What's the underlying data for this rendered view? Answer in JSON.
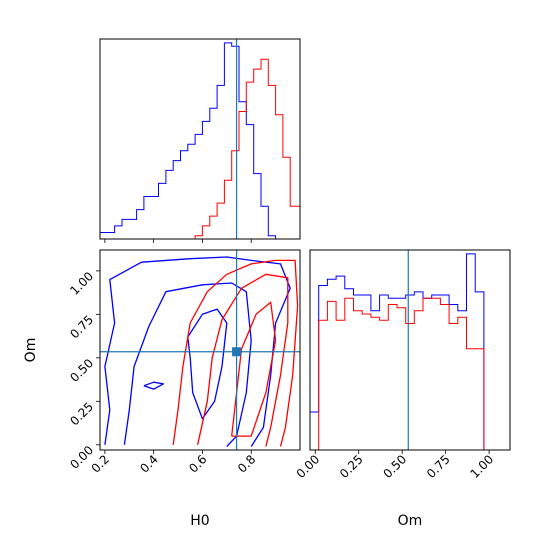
{
  "chart_data": {
    "type": "corner",
    "parameters": [
      "H0",
      "Om"
    ],
    "truths": {
      "H0": 0.74,
      "Om": 0.535
    },
    "colors": {
      "red": "#ff0000",
      "blue": "#0000ff",
      "truth": "#1f77b4"
    },
    "ranges": {
      "H0": [
        0.18,
        1.0
      ],
      "Om": [
        -0.03,
        1.12
      ]
    },
    "ticks": {
      "H0": [
        "0.2",
        "0.4",
        "0.6",
        "0.8"
      ],
      "Om": [
        "0.00",
        "0.25",
        "0.50",
        "0.75",
        "1.00"
      ]
    },
    "xlabel_H0": "H0",
    "xlabel_Om": "Om",
    "ylabel_Om": "Om",
    "hist_H0": {
      "edges": [
        0.18,
        0.21,
        0.24,
        0.27,
        0.3,
        0.33,
        0.36,
        0.39,
        0.42,
        0.45,
        0.48,
        0.51,
        0.54,
        0.57,
        0.6,
        0.63,
        0.66,
        0.69,
        0.72,
        0.75,
        0.78,
        0.81,
        0.84,
        0.87,
        0.9,
        0.93,
        0.96,
        1.0
      ],
      "series": [
        {
          "color": "#0000ff",
          "values": [
            2,
            2,
            4,
            6,
            6,
            9,
            13,
            13,
            17,
            21,
            24,
            27,
            29,
            32,
            36,
            40,
            47,
            60,
            59,
            42,
            35,
            20,
            10,
            1,
            0,
            0,
            0
          ]
        },
        {
          "color": "#ff0000",
          "values": [
            0,
            0,
            0,
            0,
            0,
            0,
            0,
            0,
            0,
            0,
            0,
            0,
            0,
            1,
            4,
            7,
            11,
            18,
            27,
            39,
            48,
            52,
            55,
            47,
            38,
            25,
            10
          ]
        }
      ]
    },
    "hist_Om": {
      "edges": [
        -0.03,
        0.02,
        0.07,
        0.12,
        0.17,
        0.22,
        0.27,
        0.32,
        0.37,
        0.42,
        0.47,
        0.52,
        0.57,
        0.62,
        0.67,
        0.72,
        0.77,
        0.82,
        0.87,
        0.92,
        0.97,
        1.02,
        1.07,
        1.12
      ],
      "series": [
        {
          "color": "#0000ff",
          "values": [
            12,
            52,
            54,
            55,
            51,
            49,
            49,
            44,
            49,
            48,
            48,
            49,
            50,
            48,
            49,
            49,
            46,
            44,
            62,
            50,
            0,
            0,
            0
          ]
        },
        {
          "color": "#ff0000",
          "values": [
            0,
            41,
            47,
            41,
            48,
            44,
            43,
            42,
            41,
            46,
            45,
            40,
            44,
            48,
            48,
            46,
            40,
            42,
            32,
            32,
            0,
            0,
            0
          ]
        }
      ]
    },
    "contours": [
      {
        "color": "#0000ff",
        "points": [
          [
            0.2,
            0.0
          ],
          [
            0.22,
            0.2
          ],
          [
            0.2,
            0.45
          ],
          [
            0.24,
            0.7
          ],
          [
            0.22,
            0.95
          ],
          [
            0.35,
            1.05
          ],
          [
            0.55,
            1.07
          ],
          [
            0.7,
            1.08
          ],
          [
            0.8,
            1.06
          ],
          [
            0.92,
            1.04
          ],
          [
            0.96,
            0.9
          ],
          [
            0.9,
            0.7
          ],
          [
            0.88,
            0.4
          ],
          [
            0.85,
            0.1
          ],
          [
            0.8,
            -0.01
          ]
        ]
      },
      {
        "color": "#0000ff",
        "points": [
          [
            0.28,
            0.0
          ],
          [
            0.3,
            0.2
          ],
          [
            0.32,
            0.45
          ],
          [
            0.38,
            0.68
          ],
          [
            0.45,
            0.88
          ],
          [
            0.6,
            0.92
          ],
          [
            0.72,
            0.93
          ],
          [
            0.78,
            0.88
          ],
          [
            0.8,
            0.6
          ],
          [
            0.78,
            0.3
          ],
          [
            0.74,
            0.05
          ],
          [
            0.7,
            -0.01
          ]
        ]
      },
      {
        "color": "#0000ff",
        "points": [
          [
            0.54,
            0.62
          ],
          [
            0.6,
            0.75
          ],
          [
            0.66,
            0.78
          ],
          [
            0.7,
            0.7
          ],
          [
            0.68,
            0.45
          ],
          [
            0.65,
            0.25
          ],
          [
            0.6,
            0.15
          ],
          [
            0.56,
            0.3
          ],
          [
            0.55,
            0.5
          ],
          [
            0.54,
            0.62
          ]
        ]
      },
      {
        "color": "#0000ff",
        "points": [
          [
            0.36,
            0.34
          ],
          [
            0.4,
            0.36
          ],
          [
            0.44,
            0.35
          ],
          [
            0.4,
            0.32
          ],
          [
            0.36,
            0.34
          ]
        ]
      },
      {
        "color": "#ff0000",
        "points": [
          [
            0.48,
            0.0
          ],
          [
            0.5,
            0.2
          ],
          [
            0.52,
            0.45
          ],
          [
            0.55,
            0.7
          ],
          [
            0.62,
            0.88
          ],
          [
            0.7,
            0.98
          ],
          [
            0.8,
            1.04
          ],
          [
            0.9,
            1.06
          ],
          [
            0.98,
            1.06
          ],
          [
            0.99,
            0.8
          ],
          [
            0.97,
            0.4
          ],
          [
            0.94,
            0.1
          ],
          [
            0.92,
            -0.01
          ]
        ]
      },
      {
        "color": "#ff0000",
        "points": [
          [
            0.58,
            0.0
          ],
          [
            0.62,
            0.25
          ],
          [
            0.64,
            0.5
          ],
          [
            0.68,
            0.72
          ],
          [
            0.76,
            0.9
          ],
          [
            0.86,
            0.98
          ],
          [
            0.95,
            0.96
          ],
          [
            0.95,
            0.7
          ],
          [
            0.92,
            0.4
          ],
          [
            0.88,
            0.1
          ],
          [
            0.86,
            -0.01
          ]
        ]
      },
      {
        "color": "#ff0000",
        "points": [
          [
            0.72,
            0.05
          ],
          [
            0.74,
            0.3
          ],
          [
            0.76,
            0.55
          ],
          [
            0.82,
            0.75
          ],
          [
            0.88,
            0.82
          ],
          [
            0.9,
            0.6
          ],
          [
            0.86,
            0.3
          ],
          [
            0.8,
            0.05
          ],
          [
            0.72,
            0.05
          ]
        ]
      }
    ]
  }
}
